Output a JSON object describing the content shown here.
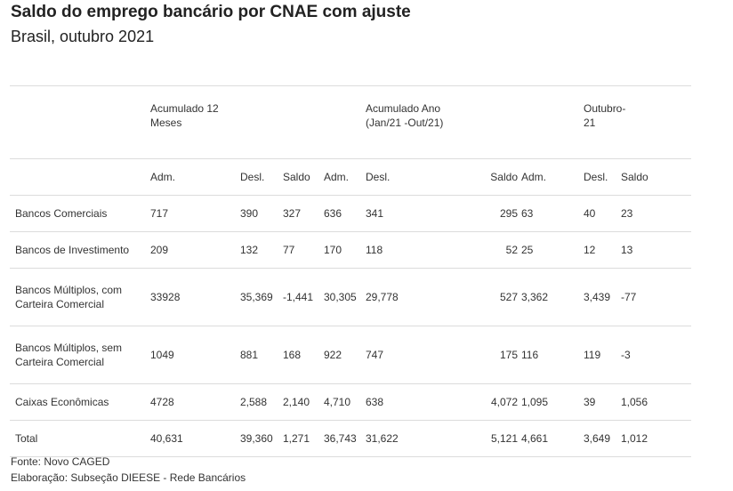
{
  "header": {
    "title": "Saldo do emprego bancário por CNAE com ajuste",
    "subtitle": "Brasil, outubro 2021"
  },
  "chart_data": {
    "type": "table",
    "column_groups": [
      "Acumulado 12 Meses",
      "Acumulado Ano (Jan/21 -Out/21)",
      "Outubro-21"
    ],
    "subcolumns": [
      "Adm.",
      "Desl.",
      "Saldo",
      "Adm.",
      "Desl.",
      "Saldo",
      "Adm.",
      "Desl.",
      "Saldo"
    ],
    "rows": [
      {
        "label": "Bancos Comerciais",
        "values": [
          "717",
          "390",
          "327",
          "636",
          "341",
          "295",
          "63",
          "40",
          "23"
        ]
      },
      {
        "label": "Bancos de Investimento",
        "values": [
          "209",
          "132",
          "77",
          "170",
          "118",
          "52",
          "25",
          "12",
          "13"
        ]
      },
      {
        "label": "Bancos Múltiplos, com Carteira Comercial",
        "values": [
          "33928",
          "35,369",
          "-1,441",
          "30,305",
          "29,778",
          "527",
          "3,362",
          "3,439",
          "-77"
        ]
      },
      {
        "label": "Bancos Múltiplos, sem Carteira Comercial",
        "values": [
          "1049",
          "881",
          "168",
          "922",
          "747",
          "175",
          "116",
          "119",
          "-3"
        ]
      },
      {
        "label": "Caixas Econômicas",
        "values": [
          "4728",
          "2,588",
          "2,140",
          "4,710",
          "638",
          "4,072",
          "1,095",
          "39",
          "1,056"
        ]
      },
      {
        "label": "Total",
        "values": [
          "40,631",
          "39,360",
          "1,271",
          "36,743",
          "31,622",
          "5,121",
          "4,661",
          "3,649",
          "1,012"
        ]
      }
    ]
  },
  "footer": {
    "source": "Fonte: Novo CAGED",
    "elaboration": "Elaboração: Subseção DIEESE - Rede Bancários"
  }
}
